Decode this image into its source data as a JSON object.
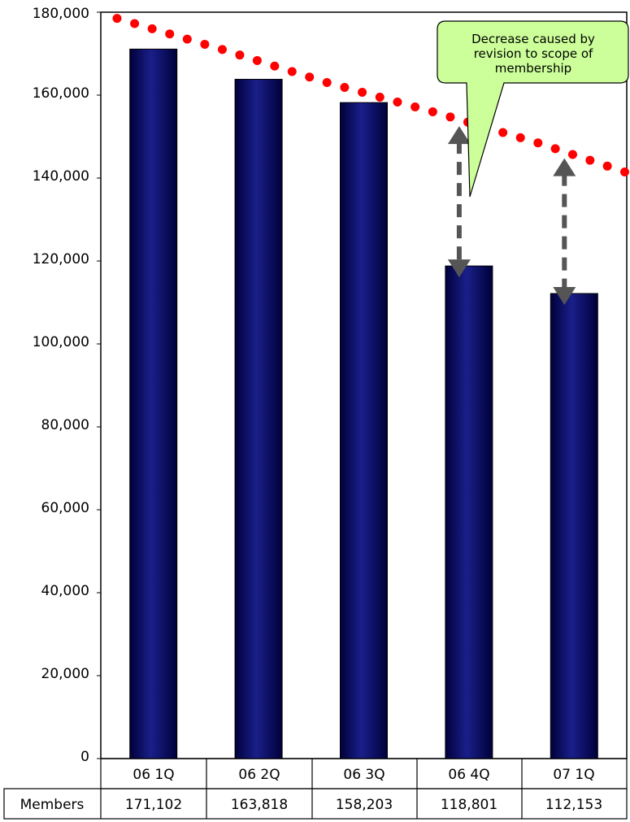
{
  "chart_data": {
    "type": "bar",
    "categories": [
      "06 1Q",
      "06 2Q",
      "06 3Q",
      "06 4Q",
      "07 1Q"
    ],
    "series": [
      {
        "name": "Members",
        "values": [
          171102,
          163818,
          158203,
          118801,
          112153
        ]
      }
    ],
    "table": {
      "row_label": "Members",
      "values": [
        "171,102",
        "163,818",
        "158,203",
        "118,801",
        "112,153"
      ]
    },
    "yticks": [
      "0",
      "20,000",
      "40,000",
      "60,000",
      "80,000",
      "100,000",
      "120,000",
      "140,000",
      "160,000",
      "180,000"
    ],
    "ylim": [
      0,
      180000
    ],
    "grid": false,
    "trendline": {
      "style": "red dotted",
      "values": [
        178500,
        171000,
        163000,
        156000,
        148500,
        140000
      ]
    },
    "annotation": {
      "lines": [
        "Decrease caused by",
        "revision to scope of",
        "membership"
      ]
    },
    "colors": {
      "bar": "#0a0f6b",
      "trend": "#ff0000",
      "arrow": "#555555",
      "callout_fill": "#ccff99"
    }
  }
}
